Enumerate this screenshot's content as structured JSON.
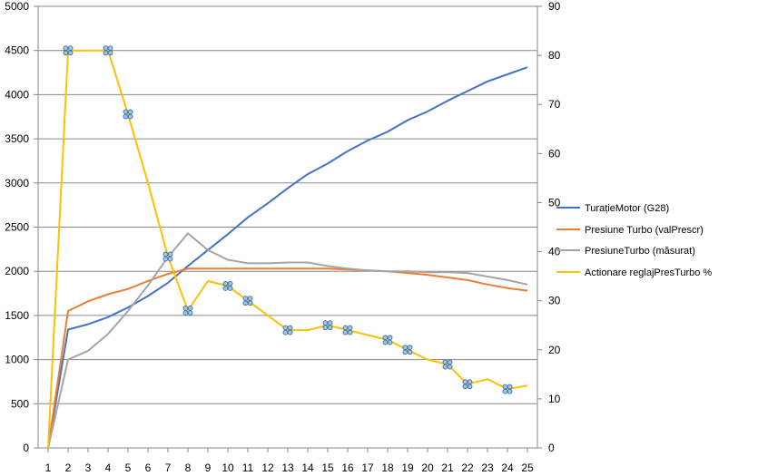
{
  "colors": {
    "grid": "#878787",
    "axis": "#878787",
    "background": "#ffffff",
    "marker_fill": "#9fc6e8",
    "marker_stroke": "#3a6ea8"
  },
  "chart_data": {
    "type": "line",
    "title": "",
    "xlabel": "",
    "ylabel": "",
    "y2label": "",
    "grid": true,
    "legend_position": "right",
    "categories": [
      "1",
      "2",
      "3",
      "4",
      "5",
      "6",
      "7",
      "8",
      "9",
      "10",
      "11",
      "12",
      "13",
      "14",
      "15",
      "16",
      "17",
      "18",
      "19",
      "20",
      "21",
      "22",
      "23",
      "24",
      "25"
    ],
    "y_left": {
      "min": 0,
      "max": 5000,
      "step": 500,
      "ticks": [
        "0",
        "500",
        "1000",
        "1500",
        "2000",
        "2500",
        "3000",
        "3500",
        "4000",
        "4500",
        "5000"
      ]
    },
    "y_right": {
      "min": 0,
      "max": 90,
      "step": 10,
      "ticks": [
        "0",
        "10",
        "20",
        "30",
        "40",
        "50",
        "60",
        "70",
        "80",
        "90"
      ]
    },
    "series": [
      {
        "name": "TurațieMotor (G28)",
        "color": "#4472c4",
        "axis": "left",
        "values": [
          0,
          1340,
          1400,
          1480,
          1590,
          1720,
          1870,
          2060,
          2240,
          2420,
          2610,
          2770,
          2940,
          3100,
          3220,
          3360,
          3480,
          3580,
          3710,
          3810,
          3930,
          4040,
          4150,
          4230,
          4310
        ]
      },
      {
        "name": "Presiune Turbo (valPrescr)",
        "color": "#ed7d31",
        "axis": "left",
        "values": [
          0,
          1550,
          1660,
          1740,
          1800,
          1890,
          1970,
          2030,
          2030,
          2030,
          2030,
          2030,
          2030,
          2030,
          2030,
          2020,
          2010,
          2000,
          1980,
          1960,
          1930,
          1900,
          1850,
          1810,
          1780
        ]
      },
      {
        "name": "PresiuneTurbo (măsurat)",
        "color": "#a5a5a5",
        "axis": "left",
        "values": [
          0,
          1000,
          1100,
          1290,
          1550,
          1840,
          2160,
          2430,
          2240,
          2130,
          2090,
          2090,
          2100,
          2100,
          2060,
          2030,
          2010,
          2000,
          2000,
          1990,
          1990,
          1980,
          1940,
          1900,
          1850
        ]
      },
      {
        "name": "Actionare reglajPresTurbo %",
        "color": "#ffc000",
        "axis": "right",
        "values": [
          0,
          81,
          81,
          81,
          68,
          54,
          39,
          28,
          34,
          33,
          30,
          27,
          24,
          24,
          25,
          24,
          23,
          22,
          20,
          18,
          17,
          13,
          14,
          12,
          12.7
        ],
        "markers": [
          2,
          4,
          5,
          7,
          8,
          10,
          11,
          13,
          15,
          16,
          18,
          19,
          21,
          22,
          24
        ]
      }
    ]
  }
}
